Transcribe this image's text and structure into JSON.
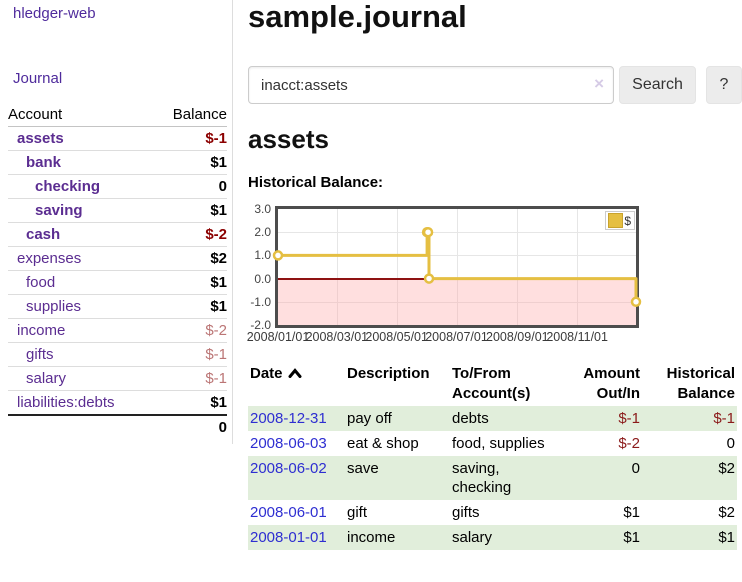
{
  "sidebar": {
    "brand": "hledger-web",
    "journal_label": "Journal",
    "accounts_table": {
      "headers": {
        "account": "Account",
        "balance": "Balance"
      },
      "rows": [
        {
          "name": "assets",
          "depth": 1,
          "emph": true,
          "balance": "$-1",
          "balance_style": "neg-strong"
        },
        {
          "name": "bank",
          "depth": 2,
          "emph": true,
          "balance": "$1",
          "balance_style": "pos"
        },
        {
          "name": "checking",
          "depth": 3,
          "emph": true,
          "balance": "0",
          "balance_style": "pos"
        },
        {
          "name": "saving",
          "depth": 3,
          "emph": true,
          "balance": "$1",
          "balance_style": "pos"
        },
        {
          "name": "cash",
          "depth": 2,
          "emph": true,
          "balance": "$-2",
          "balance_style": "neg-strong"
        },
        {
          "name": "expenses",
          "depth": 1,
          "emph": false,
          "balance": "$2",
          "balance_style": "pos"
        },
        {
          "name": "food",
          "depth": 2,
          "emph": false,
          "balance": "$1",
          "balance_style": "pos"
        },
        {
          "name": "supplies",
          "depth": 2,
          "emph": false,
          "balance": "$1",
          "balance_style": "pos"
        },
        {
          "name": "income",
          "depth": 1,
          "emph": false,
          "balance": "$-2",
          "balance_style": "neg-dim"
        },
        {
          "name": "gifts",
          "depth": 2,
          "emph": false,
          "balance": "$-1",
          "balance_style": "neg-dim"
        },
        {
          "name": "salary",
          "depth": 2,
          "emph": false,
          "link_style": "unvisited",
          "balance": "$-1",
          "balance_style": "neg-dim"
        },
        {
          "name": "liabilities:debts",
          "depth": 1,
          "emph": false,
          "balance": "$1",
          "balance_style": "pos"
        }
      ],
      "total": "0"
    }
  },
  "main": {
    "title": "sample.journal",
    "search": {
      "value": "inacct:assets",
      "clear_icon": "×",
      "button_label": "Search",
      "help_label": "?"
    },
    "account_heading": "assets",
    "chart_label": "Historical Balance:",
    "register_table": {
      "headers": {
        "date": "Date",
        "description": "Description",
        "to_from": "To/From Account(s)",
        "amount": "Amount Out/In",
        "balance": "Historical Balance"
      },
      "sort": {
        "column": "date",
        "direction": "ascending"
      },
      "rows": [
        {
          "date": "2008-12-31",
          "description": "pay off",
          "to_from": "debts",
          "amount": "$-1",
          "amount_neg": true,
          "balance": "$-1",
          "balance_neg": true,
          "highlight": true
        },
        {
          "date": "2008-06-03",
          "description": "eat & shop",
          "to_from": "food, supplies",
          "amount": "$-2",
          "amount_neg": true,
          "balance": "0",
          "balance_neg": false,
          "highlight": false
        },
        {
          "date": "2008-06-02",
          "description": "save",
          "to_from": "saving,\nchecking",
          "amount": "0",
          "amount_neg": false,
          "balance": "$2",
          "balance_neg": false,
          "highlight": true
        },
        {
          "date": "2008-06-01",
          "description": "gift",
          "to_from": "gifts",
          "amount": "$1",
          "amount_neg": false,
          "balance": "$2",
          "balance_neg": false,
          "highlight": false
        },
        {
          "date": "2008-01-01",
          "description": "income",
          "to_from": "salary",
          "amount": "$1",
          "amount_neg": false,
          "balance": "$1",
          "balance_neg": false,
          "highlight": true
        }
      ]
    }
  },
  "chart_data": {
    "type": "line",
    "step": "after",
    "title": "Historical Balance:",
    "series": [
      {
        "name": "$",
        "color": "#e5bf42",
        "points": [
          [
            "2008-01-01",
            1
          ],
          [
            "2008-06-01",
            2
          ],
          [
            "2008-06-02",
            2
          ],
          [
            "2008-06-03",
            0
          ],
          [
            "2008-12-31",
            -1
          ]
        ]
      }
    ],
    "xlim": [
      "2008-01-01",
      "2008-12-31"
    ],
    "ylim": [
      -2,
      3
    ],
    "x_ticks": [
      "2008/01/01",
      "2008/03/01",
      "2008/05/01",
      "2008/07/01",
      "2008/09/01",
      "2008/11/01"
    ],
    "y_ticks": [
      "3.0",
      "2.0",
      "1.0",
      "0.0",
      "-1.0",
      "-2.0"
    ],
    "legend": {
      "label": "$",
      "position": "top-right"
    },
    "grid": true,
    "negative_region_below": 0,
    "zero_line_color": "#8e1212",
    "negative_region_color": "rgba(255,163,163,0.35)"
  },
  "colors": {
    "link_purple": "#5b2d91",
    "nav_purple": "#4f2b9c",
    "link_blue": "#2e2ed1",
    "negative_strong": "#8b0000",
    "negative_dim": "#bb7575",
    "table_negative": "#8b1a1a",
    "row_highlight_green": "#e1eedb",
    "chart_gold": "#e5bf42",
    "chart_border": "#4d4d4d"
  }
}
